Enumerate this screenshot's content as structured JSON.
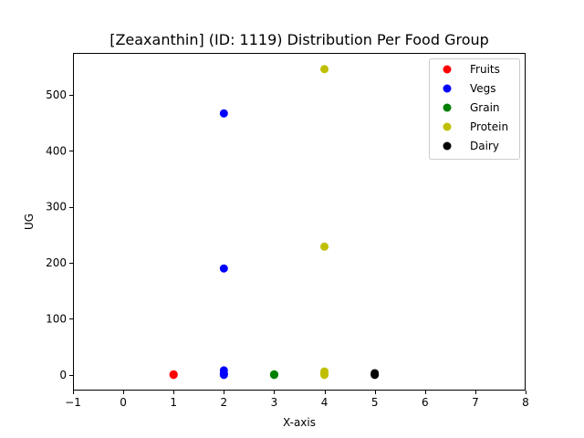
{
  "chart_data": {
    "type": "scatter",
    "title": "[Zeaxanthin] (ID: 1119) Distribution Per Food Group",
    "xlabel": "X-axis",
    "ylabel": "UG",
    "xlim": [
      -1,
      8
    ],
    "ylim": [
      -28,
      575
    ],
    "xticks": [
      -1,
      0,
      1,
      2,
      3,
      4,
      5,
      6,
      7,
      8
    ],
    "yticks": [
      0,
      100,
      200,
      300,
      400,
      500
    ],
    "grid": false,
    "legend_position": "top-right",
    "series": [
      {
        "name": "Fruits",
        "color": "#ff0000",
        "points": [
          [
            1,
            0
          ],
          [
            1,
            0.5
          ],
          [
            1,
            1
          ]
        ]
      },
      {
        "name": "Vegs",
        "color": "#0000ff",
        "points": [
          [
            2,
            467
          ],
          [
            2,
            190
          ],
          [
            2,
            8
          ],
          [
            2,
            2
          ],
          [
            2,
            0
          ]
        ]
      },
      {
        "name": "Grain",
        "color": "#008000",
        "points": [
          [
            3,
            0
          ],
          [
            3,
            0.5
          ],
          [
            3,
            1
          ]
        ]
      },
      {
        "name": "Protein",
        "color": "#bfbf00",
        "points": [
          [
            4,
            546
          ],
          [
            4,
            229
          ],
          [
            4,
            6
          ],
          [
            4,
            2
          ],
          [
            4,
            0
          ]
        ]
      },
      {
        "name": "Dairy",
        "color": "#000000",
        "points": [
          [
            5,
            3
          ],
          [
            5,
            1
          ],
          [
            5,
            0
          ]
        ]
      }
    ]
  }
}
